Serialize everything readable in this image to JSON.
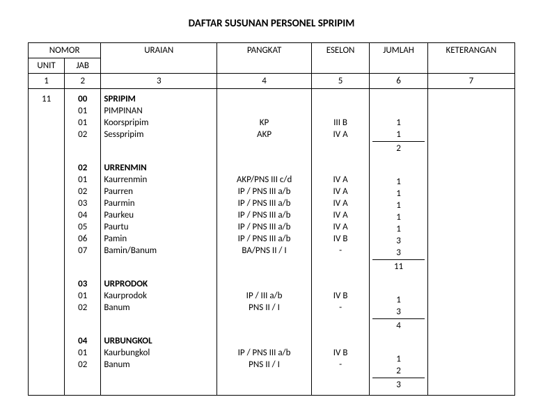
{
  "title": "DAFTAR SUSUNAN PERSONEL SPRIPIM",
  "headers": {
    "nomor": "NOMOR",
    "unit": "UNIT",
    "jab": "JAB",
    "uraian": "URAIAN",
    "pangkat": "PANGKAT",
    "eselon": "ESELON",
    "jumlah": "JUMLAH",
    "keterangan": "KETERANGAN"
  },
  "colnums": {
    "c1": "1",
    "c2": "2",
    "c3": "3",
    "c4": "4",
    "c5": "5",
    "c6": "6",
    "c7": "7"
  },
  "unit_value": "11",
  "blocks": [
    {
      "rows": [
        {
          "jab": "00",
          "uraian": "SPRIPIM",
          "bold": true,
          "pangkat": "",
          "eselon": "",
          "jumlah": ""
        },
        {
          "jab": "01",
          "uraian": "PIMPINAN",
          "pangkat": "",
          "eselon": "",
          "jumlah": ""
        },
        {
          "jab": "01",
          "uraian": "Koorspripim",
          "pangkat": "KP",
          "eselon": "III B",
          "jumlah": "1"
        },
        {
          "jab": "02",
          "uraian": "Sesspripim",
          "pangkat": "AKP",
          "eselon": "IV A",
          "jumlah": "1"
        }
      ],
      "subtotal": "2"
    },
    {
      "rows": [
        {
          "jab": "02",
          "uraian": "URRENMIN",
          "bold": true,
          "pangkat": "",
          "eselon": "",
          "jumlah": ""
        },
        {
          "jab": "01",
          "uraian": "Kaurrenmin",
          "pangkat": "AKP/PNS III c/d",
          "eselon": "IV A",
          "jumlah": "1"
        },
        {
          "jab": "02",
          "uraian": "Paurren",
          "pangkat": "IP / PNS III a/b",
          "eselon": "IV A",
          "jumlah": "1"
        },
        {
          "jab": "03",
          "uraian": "Paurmin",
          "pangkat": "IP / PNS III a/b",
          "eselon": "IV A",
          "jumlah": "1"
        },
        {
          "jab": "04",
          "uraian": "Paurkeu",
          "pangkat": "IP / PNS III a/b",
          "eselon": "IV A",
          "jumlah": "1"
        },
        {
          "jab": "05",
          "uraian": "Paurtu",
          "pangkat": "IP / PNS III a/b",
          "eselon": "IV A",
          "jumlah": "1"
        },
        {
          "jab": "06",
          "uraian": "Pamin",
          "pangkat": "IP / PNS III a/b",
          "eselon": "IV B",
          "jumlah": "3"
        },
        {
          "jab": "07",
          "uraian": "Bamin/Banum",
          "pangkat": "BA/PNS II / I",
          "eselon": "-",
          "jumlah": "3"
        }
      ],
      "subtotal": "11"
    },
    {
      "rows": [
        {
          "jab": "03",
          "uraian": "URPRODOK",
          "bold": true,
          "pangkat": "",
          "eselon": "",
          "jumlah": ""
        },
        {
          "jab": "01",
          "uraian": "Kaurprodok",
          "pangkat": "IP /  III a/b",
          "eselon": "IV B",
          "jumlah": "1"
        },
        {
          "jab": "02",
          "uraian": "Banum",
          "pangkat": "PNS II / I",
          "eselon": "-",
          "jumlah": "3"
        }
      ],
      "subtotal": "4"
    },
    {
      "rows": [
        {
          "jab": "04",
          "uraian": "URBUNGKOL",
          "bold": true,
          "pangkat": "",
          "eselon": "",
          "jumlah": ""
        },
        {
          "jab": "01",
          "uraian": "Kaurbungkol",
          "pangkat": "IP /  PNS III a/b",
          "eselon": "IV B",
          "jumlah": "1"
        },
        {
          "jab": "02",
          "uraian": "Banum",
          "pangkat": "PNS II / I",
          "eselon": "-",
          "jumlah": "2"
        }
      ],
      "subtotal": "3"
    }
  ],
  "style": {
    "background": "#ffffff",
    "text_color": "#000000",
    "border_color": "#000000",
    "title_fontsize_pt": 15,
    "body_fontsize_pt": 13,
    "font_family": "Calibri, Arial, sans-serif"
  }
}
